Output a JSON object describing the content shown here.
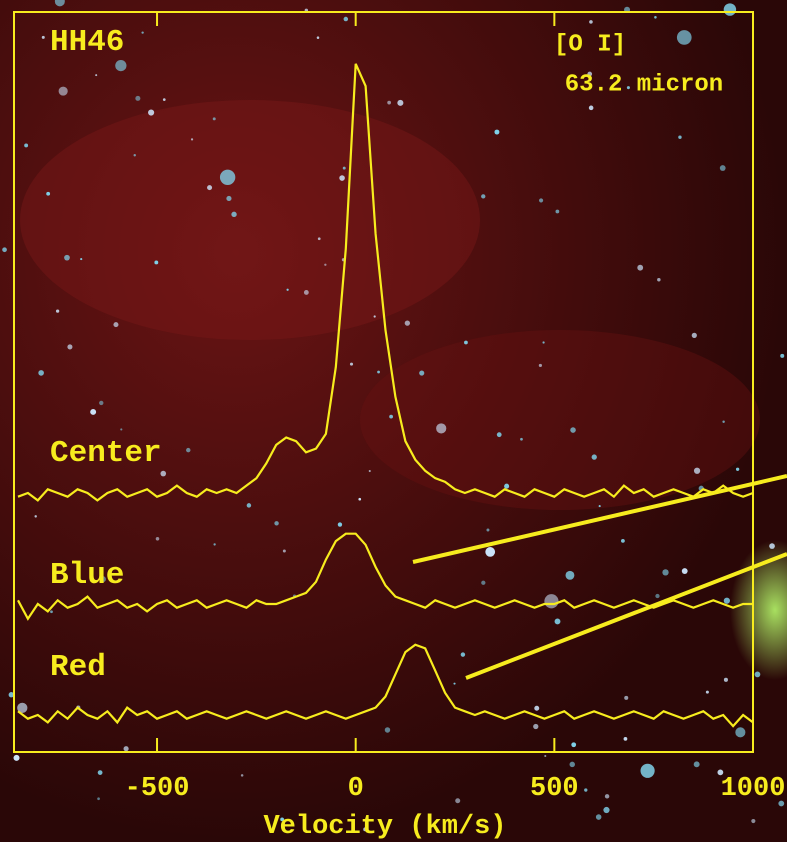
{
  "chart_data": {
    "type": "line",
    "title": "HH46",
    "annotations": [
      "[O I]",
      "63.2 micron"
    ],
    "x_label": "Velocity (km/s)",
    "xlim": [
      -860,
      1000
    ],
    "xticks": [
      -500,
      0,
      500,
      1000
    ],
    "ylim": [
      0,
      100
    ],
    "x": [
      -850,
      -825,
      -800,
      -775,
      -750,
      -725,
      -700,
      -675,
      -650,
      -625,
      -600,
      -575,
      -550,
      -525,
      -500,
      -475,
      -450,
      -425,
      -400,
      -375,
      -350,
      -325,
      -300,
      -275,
      -250,
      -225,
      -200,
      -175,
      -150,
      -125,
      -100,
      -75,
      -50,
      -25,
      0,
      25,
      50,
      75,
      100,
      125,
      150,
      175,
      200,
      225,
      250,
      275,
      300,
      325,
      350,
      375,
      400,
      425,
      450,
      475,
      500,
      525,
      550,
      575,
      600,
      625,
      650,
      675,
      700,
      725,
      750,
      775,
      800,
      825,
      850,
      875,
      900,
      925,
      950,
      975,
      1000
    ],
    "series": [
      {
        "name": "Center",
        "color": "#f7ec1e",
        "values": [
          34.5,
          35,
          34,
          35.5,
          35,
          34.5,
          35.5,
          35,
          34,
          35,
          35.5,
          34.5,
          35,
          35.5,
          34.5,
          35,
          36,
          35,
          34.5,
          35.5,
          35,
          35.5,
          35,
          36,
          37,
          39,
          41.5,
          42.5,
          42,
          40.5,
          41,
          43,
          52,
          68,
          93,
          90,
          70,
          57,
          48,
          42,
          39.5,
          38,
          37,
          36.5,
          35.5,
          35,
          35.5,
          35,
          34.5,
          35.5,
          35,
          34.5,
          35.5,
          35,
          34.5,
          35.5,
          35,
          34.5,
          35,
          35.5,
          34.5,
          36,
          35,
          35.5,
          34.5,
          35,
          35.5,
          35,
          34.5,
          35.5,
          35,
          36,
          35,
          34.5,
          35
        ]
      },
      {
        "name": "Blue",
        "color": "#f7ec1e",
        "values": [
          20.5,
          18,
          20,
          19,
          20.5,
          19.5,
          20,
          21,
          19.5,
          20,
          20.5,
          19.5,
          20,
          19,
          20,
          20.5,
          19.5,
          20,
          20.5,
          19.5,
          20,
          20.5,
          20,
          19.5,
          20.5,
          20,
          20,
          20.5,
          21,
          21.5,
          23,
          26,
          28.5,
          29.5,
          29.5,
          28,
          25,
          22.5,
          21,
          20.5,
          20,
          19.5,
          20.5,
          20,
          19.5,
          20,
          20.5,
          20,
          19.5,
          20,
          20.5,
          20,
          19.5,
          20,
          20,
          20.5,
          19.5,
          20,
          20.5,
          20,
          19.5,
          20,
          20.5,
          20,
          19.5,
          20,
          20.5,
          20,
          19.5,
          20,
          20.5,
          20,
          19.5,
          20,
          20
        ]
      },
      {
        "name": "Red",
        "color": "#f7ec1e",
        "values": [
          5.5,
          4.5,
          5,
          4,
          5.5,
          4.5,
          6,
          5,
          4.5,
          5.5,
          4,
          6,
          5,
          5.5,
          4.5,
          5,
          5.5,
          4.5,
          5,
          5.5,
          5,
          4.5,
          5,
          5.5,
          5,
          4.5,
          5,
          5.5,
          5,
          4.5,
          5,
          5.5,
          5,
          4.5,
          5,
          5.5,
          6,
          7.5,
          10.5,
          13.5,
          14.5,
          14,
          11,
          8,
          6,
          5.5,
          5,
          5.5,
          5,
          4.5,
          5,
          5.5,
          5,
          4.5,
          5,
          5.5,
          4.5,
          5,
          5.5,
          5,
          4.5,
          5,
          5.5,
          5,
          4.5,
          5.5,
          5,
          4.5,
          5,
          5.5,
          4.5,
          5,
          3.5,
          5,
          4
        ]
      }
    ]
  }
}
